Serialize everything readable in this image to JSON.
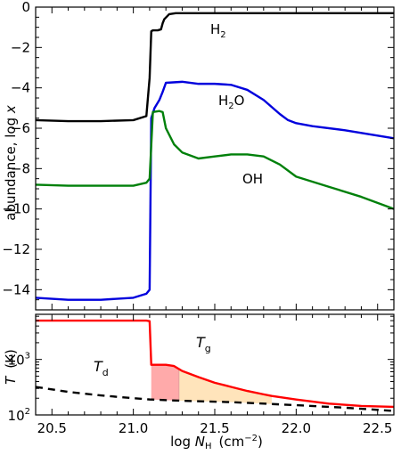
{
  "chart_data": [
    {
      "type": "line",
      "panel": "top",
      "ylabel_prefix": "abundance,  log ",
      "ylabel_var": "x",
      "xlim": [
        20.4,
        22.6
      ],
      "ylim": [
        -15,
        0
      ],
      "y_ticks": [
        0,
        -2,
        -4,
        -6,
        -8,
        -10,
        -12,
        -14
      ],
      "y_tick_labels": [
        "0",
        "−2",
        "−4",
        "−6",
        "−8",
        "−10",
        "−12",
        "−14"
      ],
      "series": [
        {
          "label": "H",
          "label_sub": "2",
          "color": "#000000",
          "x": [
            20.4,
            20.6,
            20.8,
            21.0,
            21.08,
            21.1,
            21.11,
            21.12,
            21.15,
            21.17,
            21.18,
            21.19,
            21.22,
            21.26,
            21.3,
            21.4,
            21.6,
            22.0,
            22.6
          ],
          "y": [
            -5.6,
            -5.65,
            -5.65,
            -5.6,
            -5.4,
            -3.5,
            -1.2,
            -1.15,
            -1.15,
            -1.1,
            -0.8,
            -0.6,
            -0.35,
            -0.3,
            -0.3,
            -0.3,
            -0.3,
            -0.3,
            -0.3
          ]
        },
        {
          "label": "H",
          "label_sub": "2",
          "label_tail": "O",
          "color": "#0000dd",
          "x": [
            20.4,
            20.6,
            20.8,
            21.0,
            21.08,
            21.1,
            21.11,
            21.13,
            21.16,
            21.18,
            21.2,
            21.3,
            21.4,
            21.5,
            21.6,
            21.7,
            21.8,
            21.9,
            21.95,
            22.0,
            22.1,
            22.3,
            22.6
          ],
          "y": [
            -14.4,
            -14.5,
            -14.5,
            -14.4,
            -14.2,
            -14.0,
            -5.5,
            -5.0,
            -4.6,
            -4.2,
            -3.75,
            -3.7,
            -3.8,
            -3.8,
            -3.85,
            -4.1,
            -4.6,
            -5.3,
            -5.6,
            -5.75,
            -5.9,
            -6.1,
            -6.5
          ]
        },
        {
          "label": "OH",
          "color": "#00800a",
          "x": [
            20.4,
            20.6,
            20.8,
            21.0,
            21.08,
            21.1,
            21.12,
            21.16,
            21.18,
            21.2,
            21.25,
            21.3,
            21.4,
            21.5,
            21.6,
            21.7,
            21.8,
            21.9,
            22.0,
            22.2,
            22.4,
            22.6
          ],
          "y": [
            -8.8,
            -8.85,
            -8.85,
            -8.85,
            -8.7,
            -8.5,
            -5.2,
            -5.15,
            -5.2,
            -6.0,
            -6.8,
            -7.2,
            -7.5,
            -7.4,
            -7.3,
            -7.3,
            -7.4,
            -7.8,
            -8.4,
            -8.9,
            -9.4,
            -10.0
          ]
        }
      ]
    },
    {
      "type": "line",
      "panel": "bottom",
      "ylabel_var": "T",
      "ylabel_unit": "(K)",
      "xlabel_prefix": "log ",
      "xlabel_var": "N",
      "xlabel_sub": "H",
      "xlabel_unit": "(cm",
      "xlabel_exp": "−2",
      "xlabel_close": ")",
      "yscale": "log",
      "xlim": [
        20.4,
        22.6
      ],
      "ylim": [
        100,
        6500
      ],
      "x_ticks": [
        20.5,
        21.0,
        21.5,
        22.0,
        22.5
      ],
      "x_tick_labels": [
        "20.5",
        "21.0",
        "21.5",
        "22.0",
        "22.5"
      ],
      "y_ticks": [
        100,
        1000
      ],
      "y_tick_base": "10",
      "y_tick_exps": [
        "2",
        "3"
      ],
      "series": [
        {
          "label": "T",
          "label_sub": "g",
          "color": "#ff0000",
          "style": "solid",
          "x": [
            20.4,
            20.6,
            20.8,
            21.0,
            21.08,
            21.1,
            21.11,
            21.2,
            21.25,
            21.3,
            21.4,
            21.5,
            21.6,
            21.7,
            21.8,
            21.85,
            22.0,
            22.2,
            22.4,
            22.6
          ],
          "y": [
            5000,
            5000,
            5000,
            5000,
            5000,
            4900,
            800,
            800,
            760,
            620,
            480,
            380,
            320,
            270,
            235,
            220,
            190,
            160,
            145,
            140
          ]
        },
        {
          "label": "T",
          "label_sub": "d",
          "color": "#000000",
          "style": "dashed",
          "x": [
            20.4,
            20.6,
            20.8,
            21.0,
            21.1,
            21.3,
            21.6,
            22.0,
            22.3,
            22.6
          ],
          "y": [
            320,
            260,
            225,
            200,
            190,
            180,
            170,
            150,
            135,
            118
          ]
        }
      ],
      "shaded_regions": [
        {
          "x": [
            21.11,
            21.28
          ],
          "color": "#ffaaaa"
        },
        {
          "x": [
            21.28,
            21.85
          ],
          "color": "#ffe4bb"
        }
      ]
    }
  ]
}
